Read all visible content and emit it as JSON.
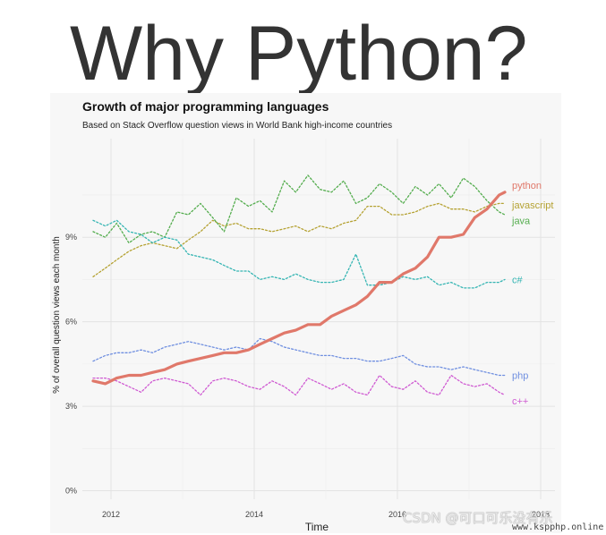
{
  "heading": "Why Python?",
  "watermark": {
    "text": "CSDN @可口可乐没有乐",
    "url": "www.kspphp.online"
  },
  "colors": {
    "python": "#e0786a",
    "javascript": "#b5a233",
    "java": "#54ad4e",
    "csharp": "#35b5b3",
    "php": "#6f8fe0",
    "cpp": "#cf5ad2",
    "grid": "#e3e3e3",
    "panel": "#f7f7f7"
  },
  "chart_data": {
    "type": "line",
    "title": "Growth of major programming languages",
    "subtitle": "Based on Stack Overflow question views in World Bank high-income countries",
    "xlabel": "Time",
    "ylabel": "% of overall question views each month",
    "xlim": [
      2011.6,
      2018.2
    ],
    "ylim": [
      -0.3,
      12.5
    ],
    "x_ticks": [
      {
        "value": 2012,
        "label": "2012"
      },
      {
        "value": 2014,
        "label": "2014"
      },
      {
        "value": 2016,
        "label": "2016"
      },
      {
        "value": 2018,
        "label": "2018"
      }
    ],
    "y_ticks": [
      {
        "value": 0,
        "label": "0%"
      },
      {
        "value": 3,
        "label": "3%"
      },
      {
        "value": 6,
        "label": "6%"
      },
      {
        "value": 9,
        "label": "9%"
      }
    ],
    "grid": true,
    "legend": "direct labels at line ends (right)",
    "series": [
      {
        "name": "python",
        "style": "solid",
        "x": [
          2011.75,
          2011.92,
          2012.08,
          2012.25,
          2012.42,
          2012.58,
          2012.75,
          2012.92,
          2013.08,
          2013.25,
          2013.42,
          2013.58,
          2013.75,
          2013.92,
          2014.08,
          2014.25,
          2014.42,
          2014.58,
          2014.75,
          2014.92,
          2015.08,
          2015.25,
          2015.42,
          2015.58,
          2015.75,
          2015.92,
          2016.08,
          2016.25,
          2016.42,
          2016.58,
          2016.75,
          2016.92,
          2017.08,
          2017.25,
          2017.42,
          2017.5
        ],
        "values": [
          3.9,
          3.8,
          4.0,
          4.1,
          4.1,
          4.2,
          4.3,
          4.5,
          4.6,
          4.7,
          4.8,
          4.9,
          4.9,
          5.0,
          5.2,
          5.4,
          5.6,
          5.7,
          5.9,
          5.9,
          6.2,
          6.4,
          6.6,
          6.9,
          7.4,
          7.4,
          7.7,
          7.9,
          8.3,
          9.0,
          9.0,
          9.1,
          9.7,
          10.0,
          10.5,
          10.6
        ]
      },
      {
        "name": "javascript",
        "style": "dotted",
        "x": [
          2011.75,
          2011.92,
          2012.08,
          2012.25,
          2012.42,
          2012.58,
          2012.75,
          2012.92,
          2013.08,
          2013.25,
          2013.42,
          2013.58,
          2013.75,
          2013.92,
          2014.08,
          2014.25,
          2014.42,
          2014.58,
          2014.75,
          2014.92,
          2015.08,
          2015.25,
          2015.42,
          2015.58,
          2015.75,
          2015.92,
          2016.08,
          2016.25,
          2016.42,
          2016.58,
          2016.75,
          2016.92,
          2017.08,
          2017.25,
          2017.42,
          2017.5
        ],
        "values": [
          7.6,
          7.9,
          8.2,
          8.5,
          8.7,
          8.8,
          8.7,
          8.6,
          8.9,
          9.2,
          9.6,
          9.4,
          9.5,
          9.3,
          9.3,
          9.2,
          9.3,
          9.4,
          9.2,
          9.4,
          9.3,
          9.5,
          9.6,
          10.1,
          10.1,
          9.8,
          9.8,
          9.9,
          10.1,
          10.2,
          10.0,
          10.0,
          9.9,
          10.1,
          10.2,
          10.2
        ]
      },
      {
        "name": "java",
        "style": "dotted",
        "x": [
          2011.75,
          2011.92,
          2012.08,
          2012.25,
          2012.42,
          2012.58,
          2012.75,
          2012.92,
          2013.08,
          2013.25,
          2013.42,
          2013.58,
          2013.75,
          2013.92,
          2014.08,
          2014.25,
          2014.42,
          2014.58,
          2014.75,
          2014.92,
          2015.08,
          2015.25,
          2015.42,
          2015.58,
          2015.75,
          2015.92,
          2016.08,
          2016.25,
          2016.42,
          2016.58,
          2016.75,
          2016.92,
          2017.08,
          2017.25,
          2017.42,
          2017.5
        ],
        "values": [
          9.2,
          9.0,
          9.5,
          8.8,
          9.1,
          9.2,
          9.0,
          9.9,
          9.8,
          10.2,
          9.7,
          9.2,
          10.4,
          10.1,
          10.3,
          9.9,
          11.0,
          10.6,
          11.2,
          10.7,
          10.6,
          11.0,
          10.2,
          10.4,
          10.9,
          10.6,
          10.2,
          10.8,
          10.5,
          10.9,
          10.4,
          11.1,
          10.8,
          10.3,
          9.9,
          9.8
        ]
      },
      {
        "name": "c#",
        "style": "dotted",
        "x": [
          2011.75,
          2011.92,
          2012.08,
          2012.25,
          2012.42,
          2012.58,
          2012.75,
          2012.92,
          2013.08,
          2013.25,
          2013.42,
          2013.58,
          2013.75,
          2013.92,
          2014.08,
          2014.25,
          2014.42,
          2014.58,
          2014.75,
          2014.92,
          2015.08,
          2015.25,
          2015.42,
          2015.58,
          2015.75,
          2015.92,
          2016.08,
          2016.25,
          2016.42,
          2016.58,
          2016.75,
          2016.92,
          2017.08,
          2017.25,
          2017.42,
          2017.5
        ],
        "values": [
          9.6,
          9.4,
          9.6,
          9.2,
          9.1,
          8.8,
          9.0,
          8.9,
          8.4,
          8.3,
          8.2,
          8.0,
          7.8,
          7.8,
          7.5,
          7.6,
          7.5,
          7.7,
          7.5,
          7.4,
          7.4,
          7.5,
          8.4,
          7.3,
          7.3,
          7.4,
          7.6,
          7.5,
          7.6,
          7.3,
          7.4,
          7.2,
          7.2,
          7.4,
          7.4,
          7.5
        ]
      },
      {
        "name": "php",
        "style": "dotted",
        "x": [
          2011.75,
          2011.92,
          2012.08,
          2012.25,
          2012.42,
          2012.58,
          2012.75,
          2012.92,
          2013.08,
          2013.25,
          2013.42,
          2013.58,
          2013.75,
          2013.92,
          2014.08,
          2014.25,
          2014.42,
          2014.58,
          2014.75,
          2014.92,
          2015.08,
          2015.25,
          2015.42,
          2015.58,
          2015.75,
          2015.92,
          2016.08,
          2016.25,
          2016.42,
          2016.58,
          2016.75,
          2016.92,
          2017.08,
          2017.25,
          2017.42,
          2017.5
        ],
        "values": [
          4.6,
          4.8,
          4.9,
          4.9,
          5.0,
          4.9,
          5.1,
          5.2,
          5.3,
          5.2,
          5.1,
          5.0,
          5.1,
          5.0,
          5.4,
          5.3,
          5.1,
          5.0,
          4.9,
          4.8,
          4.8,
          4.7,
          4.7,
          4.6,
          4.6,
          4.7,
          4.8,
          4.5,
          4.4,
          4.4,
          4.3,
          4.4,
          4.3,
          4.2,
          4.1,
          4.1
        ]
      },
      {
        "name": "c++",
        "style": "dotted",
        "x": [
          2011.75,
          2011.92,
          2012.08,
          2012.25,
          2012.42,
          2012.58,
          2012.75,
          2012.92,
          2013.08,
          2013.25,
          2013.42,
          2013.58,
          2013.75,
          2013.92,
          2014.08,
          2014.25,
          2014.42,
          2014.58,
          2014.75,
          2014.92,
          2015.08,
          2015.25,
          2015.42,
          2015.58,
          2015.75,
          2015.92,
          2016.08,
          2016.25,
          2016.42,
          2016.58,
          2016.75,
          2016.92,
          2017.08,
          2017.25,
          2017.42,
          2017.5
        ],
        "values": [
          4.0,
          4.0,
          3.9,
          3.7,
          3.5,
          3.9,
          4.0,
          3.9,
          3.8,
          3.4,
          3.9,
          4.0,
          3.9,
          3.7,
          3.6,
          3.9,
          3.7,
          3.4,
          4.0,
          3.8,
          3.6,
          3.8,
          3.5,
          3.4,
          4.1,
          3.7,
          3.6,
          3.9,
          3.5,
          3.4,
          4.1,
          3.8,
          3.7,
          3.8,
          3.5,
          3.4
        ]
      }
    ]
  }
}
